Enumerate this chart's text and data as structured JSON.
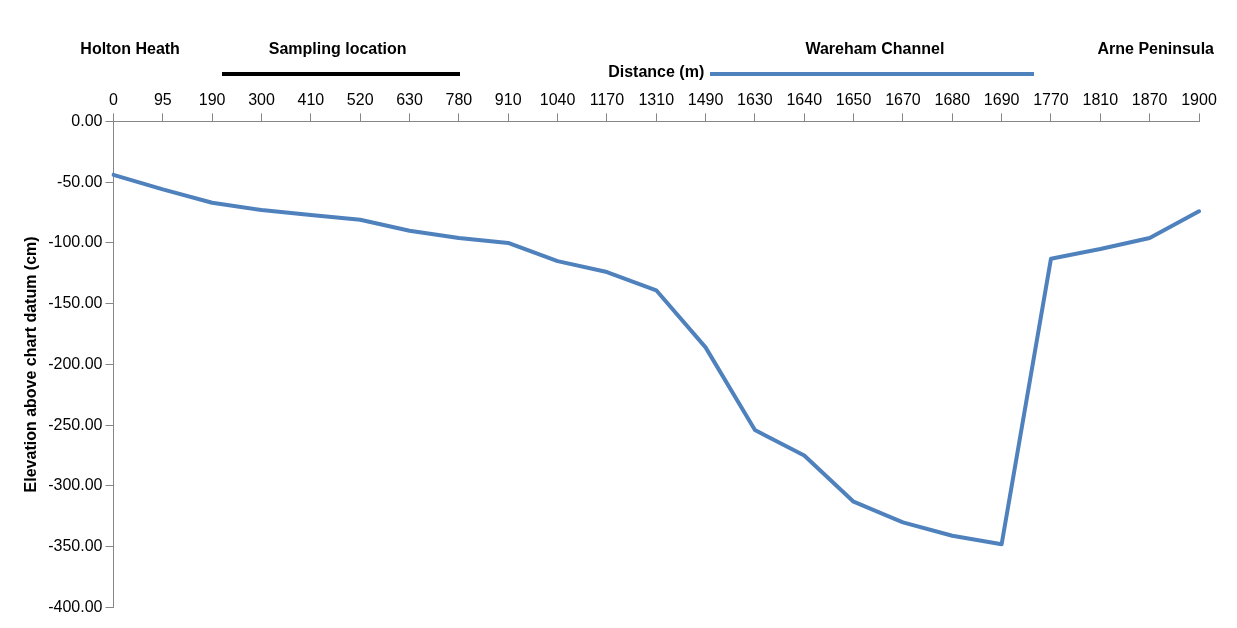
{
  "chart_data": {
    "type": "line",
    "xlabel": "Distance (m)",
    "ylabel": "Elevation above chart datum (cm)",
    "annotations": [
      "Holton Heath",
      "Sampling location",
      "Wareham Channel",
      "Arne Peninsula"
    ],
    "categories": [
      "0",
      "95",
      "190",
      "300",
      "410",
      "520",
      "630",
      "780",
      "910",
      "1040",
      "1170",
      "1310",
      "1490",
      "1630",
      "1640",
      "1650",
      "1670",
      "1680",
      "1690",
      "1770",
      "1810",
      "1870",
      "1900"
    ],
    "series": [
      {
        "color": "#4f81bd",
        "values": [
          -44,
          -56,
          -67,
          -73,
          -77,
          -81,
          -90,
          -96,
          -100,
          -115,
          -124,
          -139,
          -186,
          -254,
          -275,
          -313,
          -330,
          -341,
          -348,
          -113,
          -105,
          -96,
          -74
        ]
      }
    ],
    "ylim": [
      -400,
      0
    ],
    "yticks": [
      {
        "value": -400,
        "label": "-400.00"
      },
      {
        "value": -350,
        "label": "-350.00"
      },
      {
        "value": -300,
        "label": "-300.00"
      },
      {
        "value": -250,
        "label": "-250.00"
      },
      {
        "value": -200,
        "label": "-200.00"
      },
      {
        "value": -150,
        "label": "-150.00"
      },
      {
        "value": -100,
        "label": "-100.00"
      },
      {
        "value": -50,
        "label": "-50.00"
      },
      {
        "value": 0,
        "label": "0.00"
      }
    ],
    "grid": false,
    "legend": false,
    "marker": "none",
    "line_style": "solid"
  }
}
